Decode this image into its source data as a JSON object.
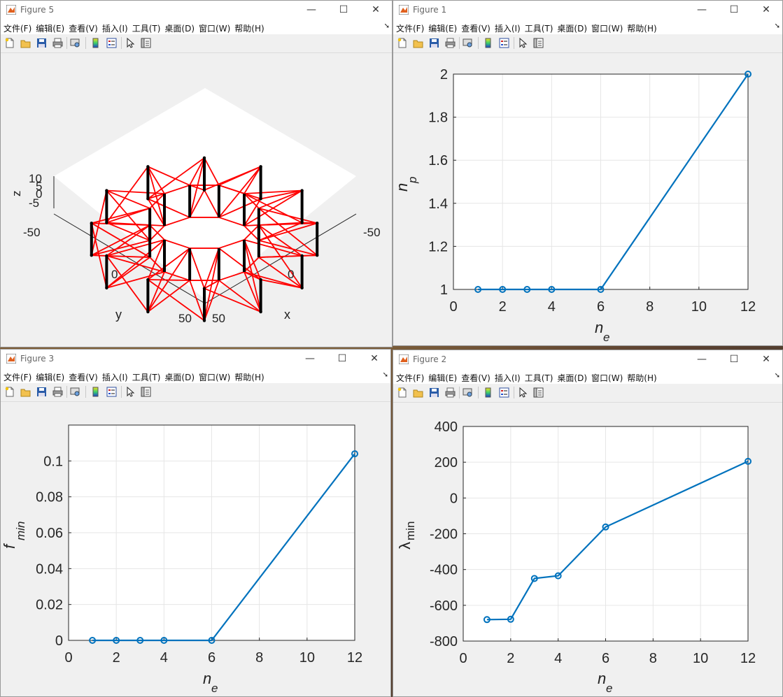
{
  "menu": [
    "文件(F)",
    "编辑(E)",
    "查看(V)",
    "插入(I)",
    "工具(T)",
    "桌面(D)",
    "窗口(W)",
    "帮助(H)"
  ],
  "controls": {
    "minimize": "—",
    "maximize": "☐",
    "close": "✕"
  },
  "colors": {
    "line": "#0072bd",
    "red_member": "#ff0000",
    "black_member": "#000000",
    "grid": "#e6e6e6"
  },
  "toolbar_icons": [
    "new-file-icon",
    "open-folder-icon",
    "save-icon",
    "print-icon",
    "print-preview-icon",
    "colorbar-icon",
    "legend-icon",
    "pointer-icon",
    "property-inspector-icon"
  ],
  "figures": {
    "fig5": {
      "title": "Figure 5",
      "axes3d": {
        "xlabel": "x",
        "ylabel": "y",
        "zlabel": "z",
        "x_ticks": [
          "-50",
          "0",
          "50"
        ],
        "y_ticks": [
          "-50",
          "0",
          "50"
        ],
        "z_ticks": [
          "10",
          "5",
          "0",
          "-5"
        ]
      }
    },
    "fig1": {
      "title": "Figure 1",
      "xlabel_main": "n",
      "xlabel_sub": "e",
      "ylabel_main": "n",
      "ylabel_sub": "p",
      "x_ticks": [
        "0",
        "2",
        "4",
        "6",
        "8",
        "10",
        "12"
      ],
      "y_ticks": [
        "1",
        "1.2",
        "1.4",
        "1.6",
        "1.8",
        "2"
      ]
    },
    "fig3": {
      "title": "Figure 3",
      "xlabel_main": "n",
      "xlabel_sub": "e",
      "ylabel_main": "f",
      "ylabel_sub": "min",
      "x_ticks": [
        "0",
        "2",
        "4",
        "6",
        "8",
        "10",
        "12"
      ],
      "y_ticks": [
        "0",
        "0.02",
        "0.04",
        "0.06",
        "0.08",
        "0.1"
      ]
    },
    "fig2": {
      "title": "Figure 2",
      "xlabel_main": "n",
      "xlabel_sub": "e",
      "ylabel_main": "λ",
      "ylabel_sub": "min",
      "x_ticks": [
        "0",
        "2",
        "4",
        "6",
        "8",
        "10",
        "12"
      ],
      "y_ticks": [
        "-800",
        "-600",
        "-400",
        "-200",
        "0",
        "200",
        "400"
      ]
    }
  },
  "chart_data": [
    {
      "id": "fig1",
      "type": "line",
      "x": [
        1,
        2,
        3,
        4,
        6,
        12
      ],
      "y": [
        1,
        1,
        1,
        1,
        1,
        2
      ],
      "xlim": [
        0,
        12
      ],
      "ylim": [
        1,
        2
      ],
      "grid": true,
      "xlabel": "n_e",
      "ylabel": "n_p"
    },
    {
      "id": "fig3",
      "type": "line",
      "x": [
        1,
        2,
        3,
        4,
        6,
        12
      ],
      "y": [
        0,
        0,
        0,
        0,
        0,
        0.104
      ],
      "xlim": [
        0,
        12
      ],
      "ylim": [
        0,
        0.12
      ],
      "grid": true,
      "xlabel": "n_e",
      "ylabel": "f_min"
    },
    {
      "id": "fig2",
      "type": "line",
      "x": [
        1,
        2,
        3,
        4,
        6,
        12
      ],
      "y": [
        -680,
        -678,
        -450,
        -435,
        -162,
        205
      ],
      "xlim": [
        0,
        12
      ],
      "ylim": [
        -800,
        400
      ],
      "grid": true,
      "xlabel": "n_e",
      "ylabel": "λ_min"
    }
  ]
}
